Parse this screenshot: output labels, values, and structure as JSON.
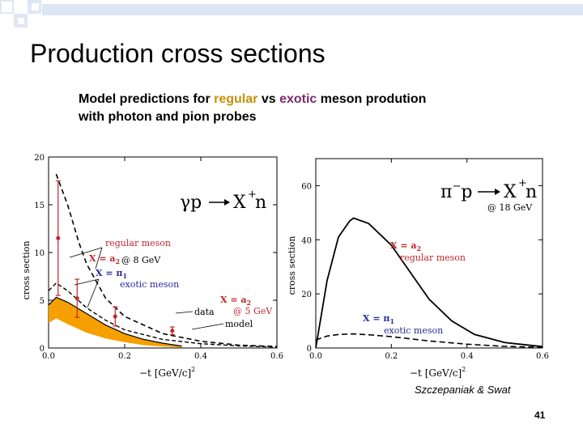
{
  "slide": {
    "title": "Production cross sections",
    "subtitle_line1_pre": "Model predictions for ",
    "subtitle_regular": "regular",
    "subtitle_mid": " vs ",
    "subtitle_exotic": "exotic",
    "subtitle_line1_post": " meson prodution",
    "subtitle_line2": "with photon and pion probes",
    "credit": "Szczepaniak & Swat",
    "page_number": "41",
    "colors": {
      "regular": "#c8900a",
      "exotic": "#7a2a6a",
      "deco_blue": "#dfe6f3"
    }
  },
  "left_plot": {
    "reaction_lhs": "γp",
    "reaction_rhs": "X",
    "reaction_sup": "+",
    "reaction_n": "n",
    "ylabel": "cross section",
    "xlabel": "−t  [GeV/c]",
    "xlabel_sup": "2",
    "regular_label": "regular meson",
    "regular_x": "X = a",
    "regular_x_sub": "2",
    "energy_8": "@ 8 GeV",
    "exotic_x": "X = π",
    "exotic_x_sub": "1",
    "exotic_label": "exotic meson",
    "pt_x": "X = a",
    "pt_x_sub": "2",
    "energy_5": "@ 5 GeV",
    "data_label": "data",
    "model_label": "model"
  },
  "right_plot": {
    "reaction_lhs": "π",
    "reaction_lhs_sup": "−",
    "reaction_p": "p",
    "reaction_rhs": "X",
    "reaction_sup": "+",
    "reaction_n": "n",
    "energy": "@ 18 GeV",
    "ylabel": "cross section",
    "xlabel": "−t  [GeV/c]",
    "xlabel_sup": "2",
    "regular_x": "X = a",
    "regular_x_sub": "2",
    "regular_label": "regular meson",
    "exotic_x": "X = π",
    "exotic_x_sub": "1",
    "exotic_label": "exotic meson"
  },
  "chart_data": [
    {
      "type": "line",
      "xlim": [
        0.0,
        0.6
      ],
      "ylim": [
        0,
        20
      ],
      "x_ticks": [
        "0.0",
        "0.2",
        "0.4",
        "0.6"
      ],
      "y_ticks": [
        "0",
        "5",
        "10",
        "15",
        "20"
      ],
      "series": [
        {
          "kind": "regular meson (X = a2 @ 8 GeV), dashed",
          "x": [
            0.02,
            0.05,
            0.08,
            0.1,
            0.15,
            0.2,
            0.3,
            0.4,
            0.5,
            0.6
          ],
          "y": [
            18.2,
            15.0,
            11.0,
            8.8,
            5.2,
            3.3,
            1.5,
            0.7,
            0.3,
            0.15
          ]
        },
        {
          "kind": "exotic meson band upper (X = π1 @ 8 GeV)",
          "x": [
            0.0,
            0.02,
            0.05,
            0.1,
            0.15,
            0.2,
            0.25,
            0.3,
            0.35
          ],
          "y": [
            4.5,
            5.3,
            4.8,
            3.6,
            2.4,
            1.5,
            0.9,
            0.5,
            0.2
          ]
        },
        {
          "kind": "exotic meson band lower",
          "x": [
            0.0,
            0.02,
            0.05,
            0.1,
            0.15,
            0.2,
            0.25,
            0.3,
            0.35
          ],
          "y": [
            2.6,
            3.1,
            2.5,
            1.6,
            1.0,
            0.6,
            0.3,
            0.15,
            0.05
          ]
        },
        {
          "kind": "model (X = a2 @ 5 GeV), solid",
          "x": [
            0.0,
            0.02,
            0.05,
            0.1,
            0.15,
            0.2,
            0.3,
            0.4,
            0.5,
            0.6
          ],
          "y": [
            6.0,
            6.8,
            6.0,
            4.2,
            2.9,
            1.9,
            0.9,
            0.45,
            0.22,
            0.1
          ]
        }
      ],
      "data_points": {
        "x": [
          0.025,
          0.075,
          0.175,
          0.325
        ],
        "y": [
          11.5,
          5.2,
          3.3,
          1.8
        ],
        "err_lo": [
          6.0,
          2.0,
          1.0,
          0.4
        ],
        "err_hi": [
          6.0,
          2.0,
          1.0,
          0.4
        ]
      }
    },
    {
      "type": "line",
      "xlim": [
        0.0,
        0.6
      ],
      "ylim": [
        0,
        70
      ],
      "x_ticks": [
        "0.0",
        "0.2",
        "0.4",
        "0.6"
      ],
      "y_ticks": [
        "0",
        "20",
        "40",
        "60"
      ],
      "series": [
        {
          "kind": "regular meson (X = a2 @ 18 GeV), solid",
          "x": [
            0.0,
            0.03,
            0.06,
            0.09,
            0.1,
            0.14,
            0.2,
            0.26,
            0.3,
            0.36,
            0.42,
            0.5,
            0.6
          ],
          "y": [
            0,
            25,
            41,
            47,
            48,
            46,
            38,
            26,
            18,
            10,
            5,
            2,
            0.5
          ]
        },
        {
          "kind": "exotic meson (X = π1 @ 18 GeV), dashed",
          "x": [
            0.0,
            0.03,
            0.06,
            0.1,
            0.15,
            0.2,
            0.3,
            0.4,
            0.5,
            0.6
          ],
          "y": [
            3.0,
            4.4,
            5.0,
            5.2,
            4.8,
            4.2,
            2.6,
            1.4,
            0.6,
            0.2
          ]
        }
      ]
    }
  ]
}
